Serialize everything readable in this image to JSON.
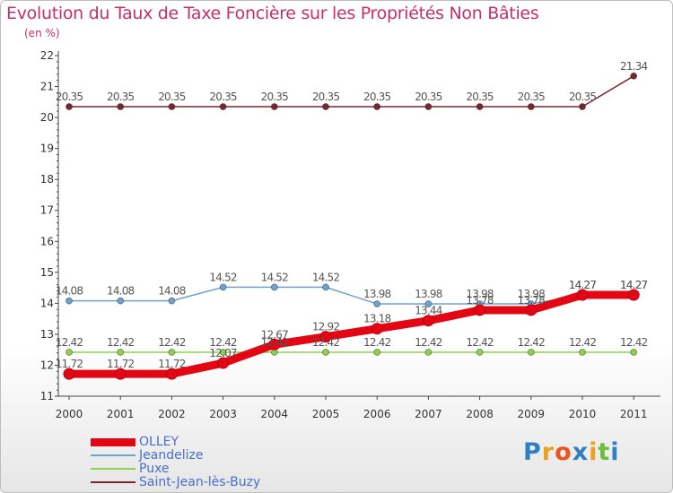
{
  "chart_data": {
    "type": "line",
    "title": "Evolution du Taux de Taxe Foncière sur les Propriétés Non Bâties",
    "ylabel": "(en %)",
    "xlabel": "",
    "ylim": [
      11,
      22
    ],
    "yticks": [
      "11",
      "12",
      "13",
      "14",
      "15",
      "16",
      "17",
      "18",
      "19",
      "20",
      "21",
      "22"
    ],
    "x": [
      "2000",
      "2001",
      "2002",
      "2003",
      "2004",
      "2005",
      "2006",
      "2007",
      "2008",
      "2009",
      "2010",
      "2011"
    ],
    "grid": false,
    "legend_position": "bottom-left",
    "series": [
      {
        "name": "OLLEY",
        "color": "#e30613",
        "values": [
          11.72,
          11.72,
          11.72,
          12.07,
          12.67,
          12.92,
          13.18,
          13.44,
          13.78,
          13.78,
          14.27,
          14.27
        ],
        "labels": [
          "11.72",
          "11.72",
          "11.72",
          "12.07",
          "12.67",
          "12.92",
          "13.18",
          "13.44",
          "13.78",
          "13.78",
          "14.27",
          "14.27"
        ]
      },
      {
        "name": "Jeandelize",
        "color": "#6fa2d0",
        "values": [
          14.08,
          14.08,
          14.08,
          14.52,
          14.52,
          14.52,
          13.98,
          13.98,
          13.98,
          13.98,
          14.27,
          14.27
        ],
        "labels": [
          "14.08",
          "14.08",
          "14.08",
          "14.52",
          "14.52",
          "14.52",
          "13.98",
          "13.98",
          "13.98",
          "13.98",
          "14.27",
          "14.27"
        ]
      },
      {
        "name": "Puxe",
        "color": "#8fd14f",
        "values": [
          12.42,
          12.42,
          12.42,
          12.42,
          12.42,
          12.42,
          12.42,
          12.42,
          12.42,
          12.42,
          12.42,
          12.42
        ],
        "labels": [
          "12.42",
          "12.42",
          "12.42",
          "12.42",
          "12.42",
          "12.42",
          "12.42",
          "12.42",
          "12.42",
          "12.42",
          "12.42",
          "12.42"
        ]
      },
      {
        "name": "Saint-Jean-lès-Buzy",
        "color": "#7a2630",
        "values": [
          20.35,
          20.35,
          20.35,
          20.35,
          20.35,
          20.35,
          20.35,
          20.35,
          20.35,
          20.35,
          20.35,
          21.34
        ],
        "labels": [
          "20.35",
          "20.35",
          "20.35",
          "20.35",
          "20.35",
          "20.35",
          "20.35",
          "20.35",
          "20.35",
          "20.35",
          "20.35",
          "21.34"
        ]
      }
    ]
  },
  "logo": {
    "letters": [
      "P",
      "r",
      "o",
      "x",
      "i",
      "t",
      "i"
    ],
    "colors": [
      "#2f7fc1",
      "#f0a020",
      "#e8531f",
      "#2f7fc1",
      "#f0a020",
      "#6cbf3a",
      "#2f7fc1"
    ]
  }
}
